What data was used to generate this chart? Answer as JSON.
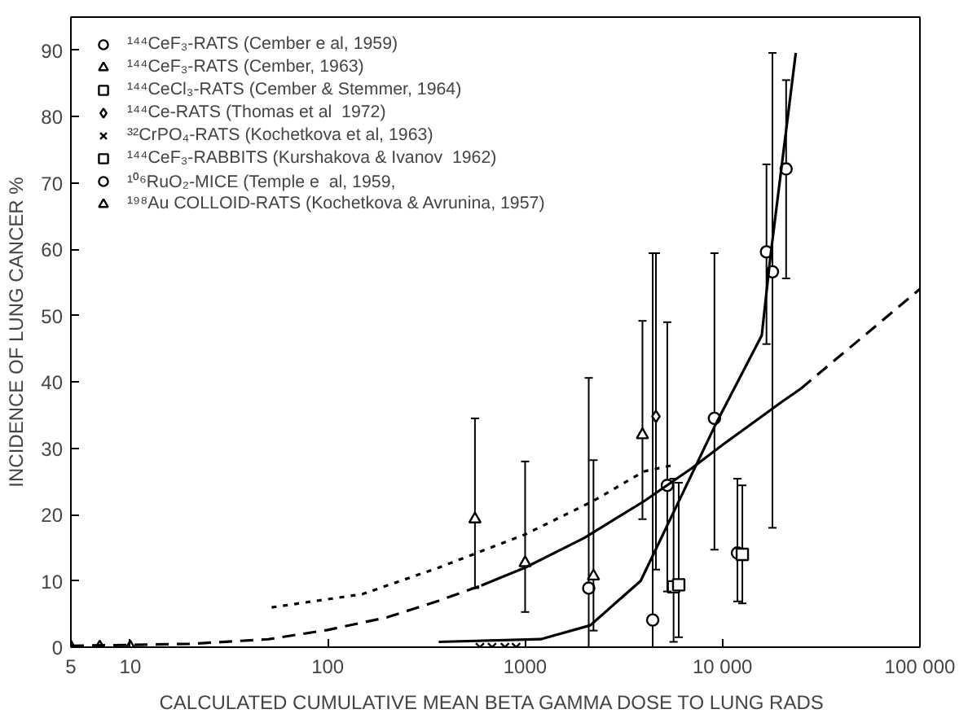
{
  "chart_data": {
    "type": "scatter",
    "xlabel": "CALCULATED CUMULATIVE MEAN BETA GAMMA DOSE TO LUNG  RADS",
    "ylabel": "INCIDENCE OF LUNG CANCER %",
    "log": "x",
    "xlim": [
      5,
      100000
    ],
    "ylim": [
      0,
      95
    ],
    "xticks": [
      5,
      10,
      100,
      1000,
      {
        "value": 10000,
        "label": "10 000"
      },
      {
        "value": 100000,
        "label": "100 000"
      }
    ],
    "yticks": [
      0,
      10,
      20,
      30,
      40,
      50,
      60,
      70,
      80,
      90
    ],
    "grid": false,
    "legend": "top left",
    "series": [
      {
        "name": "¹⁴⁴CeF₃-RATS (Cember e al, 1959)",
        "color": "#000000",
        "marker": "circle",
        "x": [
          2100,
          4430,
          9100,
          11900,
          16700,
          17900,
          21000
        ],
        "values": [
          8.9,
          4.1,
          34.5,
          14.2,
          59.6,
          56.6,
          72.1
        ],
        "errors": [
          [
            0,
            40.6
          ],
          [
            0,
            59.4
          ],
          [
            14.7,
            59.4
          ],
          [
            6.9,
            25.4
          ],
          [
            45.7,
            72.8
          ],
          [
            18,
            89.6
          ],
          [
            55.6,
            85.5
          ]
        ]
      },
      {
        "name": "¹⁴⁴CeF₃-RATS (Cember, 1963)",
        "color": "#000000",
        "marker": "triangle",
        "x": [
          557,
          1000,
          2220,
          3930
        ],
        "values": [
          19.3,
          12.7,
          10.7,
          32
        ],
        "errors": [
          [
            8.9,
            34.5
          ],
          [
            5.3,
            28
          ],
          [
            2.5,
            28.2
          ],
          [
            19.3,
            49.2
          ]
        ]
      },
      {
        "name": "¹⁴⁴CeCl₃-RATS (Cember & Stemmer, 1964)",
        "color": "#000000",
        "marker": "square",
        "x": [
          12600
        ],
        "values": [
          14
        ],
        "errors": [
          [
            6.6,
            24.4
          ]
        ]
      },
      {
        "name": "¹⁴⁴Ce-RATS (Thomas et al  1972)",
        "color": "#000000",
        "marker": "diamond",
        "x": [
          4600
        ],
        "values": [
          34.8
        ],
        "errors": [
          [
            11.7,
            59.4
          ]
        ]
      },
      {
        "name": "³²CrPO₄-RATS (Kochetkova et al, 1963)",
        "color": "#000000",
        "marker": "cross",
        "x": [
          590,
          680,
          790,
          900
        ],
        "values": [
          0,
          0,
          0,
          0
        ]
      },
      {
        "name": "¹⁴⁴CeF₃-RABBITS (Kurshakova & Ivanov  1962)",
        "color": "#000000",
        "marker": "square",
        "x": [
          5650,
          6000
        ],
        "values": [
          9.1,
          9.4
        ],
        "errors": [
          [
            0.8,
            25.4
          ],
          [
            1.5,
            24.8
          ]
        ]
      },
      {
        "name": "¹⁰⁶RuO₂-MICE (Temple e  al, 1959,",
        "color": "#000000",
        "marker": "circle",
        "x": [
          5250
        ],
        "values": [
          24.4
        ],
        "errors": [
          [
            8.4,
            49
          ]
        ]
      },
      {
        "name": "¹⁹⁸Au COLLOID-RATS (Kochetkova & Avrunina, 1957)",
        "color": "#000000",
        "marker": "triangle",
        "x": [
          5,
          7,
          10
        ],
        "values": [
          0,
          0,
          0
        ]
      },
      {
        "type": "line",
        "color": "#000000",
        "line_style": "dashed",
        "x": [
          5,
          20,
          50,
          100,
          200,
          365,
          600
        ],
        "values": [
          0.2,
          0.5,
          1.2,
          2.6,
          4.5,
          7,
          9.3
        ]
      },
      {
        "type": "line",
        "color": "#000000",
        "line_style": "solid",
        "x": [
          600,
          1000,
          2000,
          4000,
          7000,
          10000,
          20000,
          25000
        ],
        "values": [
          9.3,
          12,
          16.5,
          22,
          27,
          30.5,
          37,
          39
        ]
      },
      {
        "type": "line",
        "color": "#000000",
        "line_style": "dashed",
        "x": [
          25000,
          30000,
          50000,
          100000
        ],
        "values": [
          39,
          41,
          46.5,
          54
        ]
      },
      {
        "type": "line",
        "color": "#000000",
        "line_style": "dotted",
        "x": [
          52,
          150,
          365,
          1000,
          2200,
          4000,
          5500
        ],
        "values": [
          6,
          8,
          12,
          17,
          22,
          26.5,
          27.4
        ]
      },
      {
        "type": "line",
        "color": "#000000",
        "line_style": "solid",
        "x": [
          365,
          1200,
          2140,
          3850,
          9300,
          15800,
          17500,
          23500
        ],
        "values": [
          0.8,
          1.2,
          3.3,
          10,
          33.8,
          47,
          59,
          89.6
        ]
      }
    ]
  }
}
